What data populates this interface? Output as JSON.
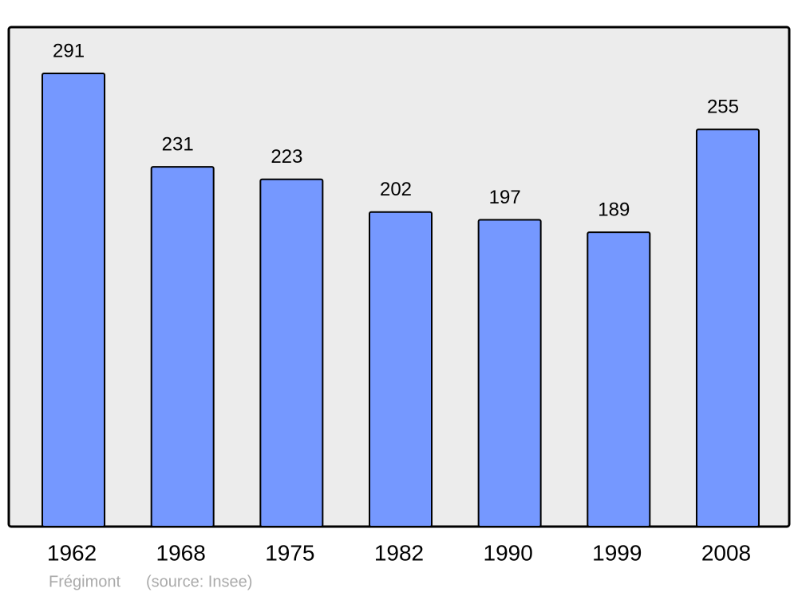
{
  "chart_data": {
    "type": "bar",
    "title": "Frégimont",
    "source": "(source: Insee)",
    "categories": [
      "1962",
      "1968",
      "1975",
      "1982",
      "1990",
      "1999",
      "2008"
    ],
    "values": [
      291,
      231,
      223,
      202,
      197,
      189,
      255
    ],
    "color": "#7598ff"
  }
}
